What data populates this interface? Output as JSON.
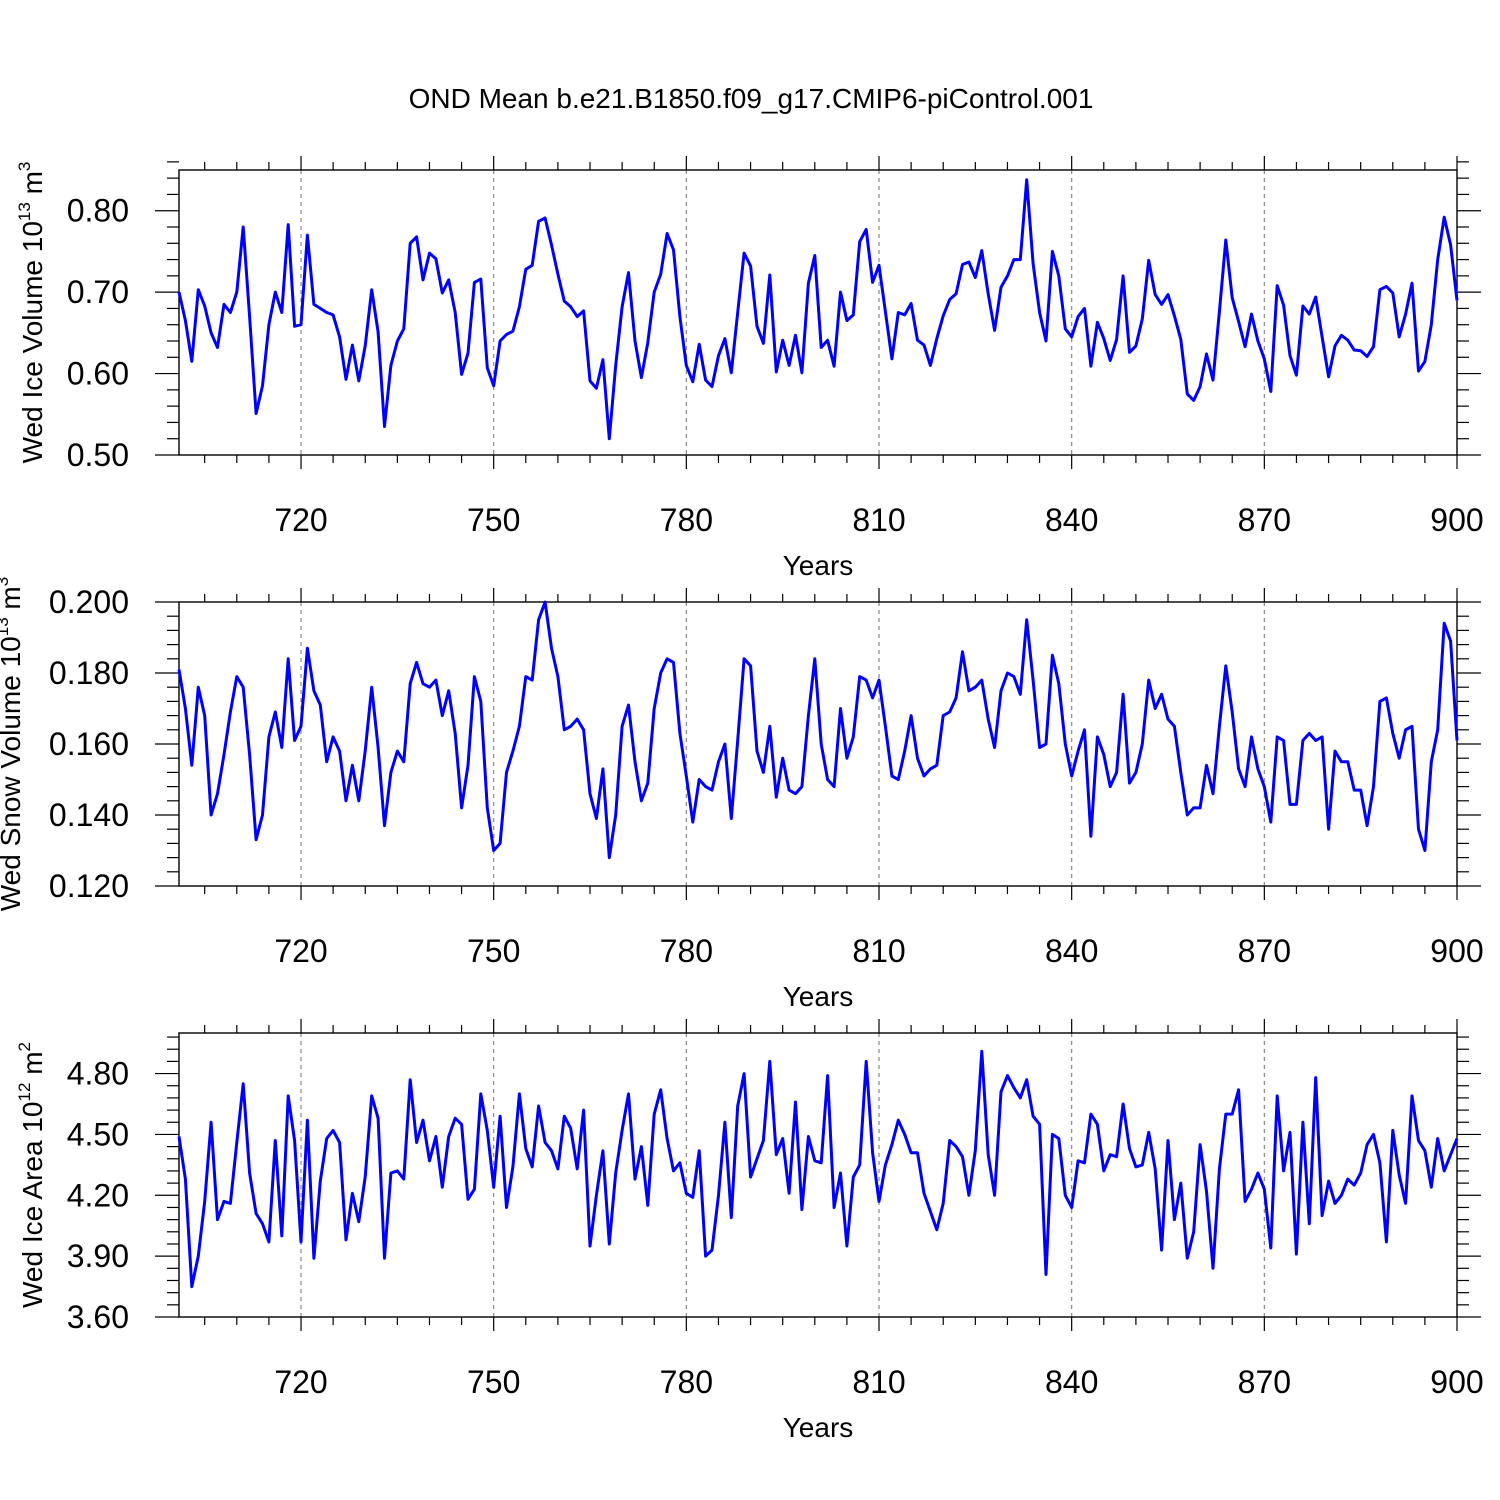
{
  "title": "OND Mean b.e21.B1850.f09_g17.CMIP6-piControl.001",
  "colors": {
    "line": "#0000ff",
    "axis": "#000000",
    "grid": "#888888"
  },
  "chart_data": [
    {
      "type": "line",
      "xlabel": "Years",
      "ylabel": {
        "main": "Wed Ice Volume 10",
        "exp": "13",
        "unit": " m",
        "unit_exp": "3"
      },
      "xlim": [
        701,
        900
      ],
      "ylim": [
        0.5,
        0.85
      ],
      "xticks": [
        720,
        750,
        780,
        810,
        840,
        870,
        900
      ],
      "xtick_labels": [
        "720",
        "750",
        "780",
        "810",
        "840",
        "870",
        "900"
      ],
      "yticks": [
        0.5,
        0.6,
        0.7,
        0.8
      ],
      "ytick_labels": [
        "0.50",
        "0.60",
        "0.70",
        "0.80"
      ],
      "grid": "vertical dashed at x ticks",
      "x_start": 701,
      "values": [
        0.7,
        0.665,
        0.615,
        0.703,
        0.683,
        0.65,
        0.632,
        0.685,
        0.675,
        0.7,
        0.78,
        0.67,
        0.551,
        0.585,
        0.66,
        0.7,
        0.675,
        0.783,
        0.658,
        0.66,
        0.77,
        0.685,
        0.68,
        0.675,
        0.672,
        0.645,
        0.593,
        0.635,
        0.591,
        0.634,
        0.703,
        0.651,
        0.535,
        0.61,
        0.64,
        0.655,
        0.76,
        0.768,
        0.715,
        0.748,
        0.741,
        0.699,
        0.715,
        0.675,
        0.599,
        0.625,
        0.712,
        0.716,
        0.607,
        0.585,
        0.64,
        0.648,
        0.652,
        0.682,
        0.728,
        0.733,
        0.787,
        0.791,
        0.758,
        0.722,
        0.689,
        0.682,
        0.67,
        0.677,
        0.591,
        0.582,
        0.617,
        0.52,
        0.61,
        0.682,
        0.724,
        0.64,
        0.595,
        0.638,
        0.7,
        0.722,
        0.772,
        0.752,
        0.67,
        0.61,
        0.59,
        0.636,
        0.592,
        0.584,
        0.622,
        0.643,
        0.601,
        0.675,
        0.748,
        0.732,
        0.658,
        0.637,
        0.721,
        0.602,
        0.641,
        0.61,
        0.647,
        0.601,
        0.711,
        0.745,
        0.632,
        0.641,
        0.609,
        0.7,
        0.665,
        0.672,
        0.762,
        0.777,
        0.712,
        0.733,
        0.676,
        0.618,
        0.675,
        0.672,
        0.686,
        0.641,
        0.635,
        0.61,
        0.643,
        0.671,
        0.691,
        0.698,
        0.734,
        0.737,
        0.718,
        0.751,
        0.698,
        0.653,
        0.706,
        0.72,
        0.74,
        0.74,
        0.838,
        0.735,
        0.675,
        0.64,
        0.75,
        0.72,
        0.655,
        0.645,
        0.67,
        0.68,
        0.609,
        0.663,
        0.643,
        0.616,
        0.642,
        0.72,
        0.626,
        0.634,
        0.667,
        0.739,
        0.697,
        0.685,
        0.697,
        0.671,
        0.642,
        0.575,
        0.567,
        0.584,
        0.624,
        0.592,
        0.676,
        0.764,
        0.693,
        0.664,
        0.633,
        0.673,
        0.64,
        0.618,
        0.578,
        0.708,
        0.684,
        0.622,
        0.598,
        0.683,
        0.673,
        0.694,
        0.645,
        0.596,
        0.634,
        0.647,
        0.641,
        0.629,
        0.628,
        0.621,
        0.633,
        0.703,
        0.707,
        0.699,
        0.645,
        0.673,
        0.711,
        0.603,
        0.615,
        0.66,
        0.74,
        0.792,
        0.758,
        0.69
      ]
    },
    {
      "type": "line",
      "xlabel": "Years",
      "ylabel": {
        "main": "Wed Snow Volume 10",
        "exp": "13",
        "unit": " m",
        "unit_exp": "3"
      },
      "xlim": [
        701,
        900
      ],
      "ylim": [
        0.12,
        0.2
      ],
      "xticks": [
        720,
        750,
        780,
        810,
        840,
        870,
        900
      ],
      "xtick_labels": [
        "720",
        "750",
        "780",
        "810",
        "840",
        "870",
        "900"
      ],
      "yticks": [
        0.12,
        0.14,
        0.16,
        0.18,
        0.2
      ],
      "ytick_labels": [
        "0.120",
        "0.140",
        "0.160",
        "0.180",
        "0.200"
      ],
      "grid": "vertical dashed at x ticks",
      "x_start": 701,
      "values": [
        0.181,
        0.17,
        0.154,
        0.176,
        0.168,
        0.14,
        0.146,
        0.157,
        0.169,
        0.179,
        0.176,
        0.157,
        0.133,
        0.14,
        0.162,
        0.169,
        0.159,
        0.184,
        0.161,
        0.165,
        0.187,
        0.175,
        0.171,
        0.155,
        0.162,
        0.158,
        0.144,
        0.154,
        0.144,
        0.158,
        0.176,
        0.159,
        0.137,
        0.152,
        0.158,
        0.155,
        0.177,
        0.183,
        0.177,
        0.176,
        0.178,
        0.168,
        0.175,
        0.163,
        0.142,
        0.154,
        0.179,
        0.172,
        0.142,
        0.13,
        0.132,
        0.152,
        0.158,
        0.165,
        0.179,
        0.178,
        0.195,
        0.2,
        0.187,
        0.179,
        0.164,
        0.165,
        0.167,
        0.164,
        0.146,
        0.139,
        0.153,
        0.128,
        0.14,
        0.165,
        0.171,
        0.155,
        0.144,
        0.149,
        0.17,
        0.18,
        0.184,
        0.183,
        0.163,
        0.151,
        0.138,
        0.15,
        0.148,
        0.147,
        0.155,
        0.16,
        0.139,
        0.161,
        0.184,
        0.182,
        0.158,
        0.152,
        0.165,
        0.145,
        0.156,
        0.147,
        0.146,
        0.148,
        0.168,
        0.184,
        0.16,
        0.15,
        0.148,
        0.17,
        0.156,
        0.162,
        0.179,
        0.178,
        0.173,
        0.178,
        0.165,
        0.151,
        0.15,
        0.158,
        0.168,
        0.156,
        0.151,
        0.153,
        0.154,
        0.168,
        0.169,
        0.173,
        0.186,
        0.175,
        0.176,
        0.178,
        0.167,
        0.159,
        0.175,
        0.18,
        0.179,
        0.174,
        0.195,
        0.178,
        0.159,
        0.16,
        0.185,
        0.177,
        0.16,
        0.151,
        0.158,
        0.164,
        0.134,
        0.162,
        0.157,
        0.148,
        0.152,
        0.174,
        0.149,
        0.152,
        0.16,
        0.178,
        0.17,
        0.174,
        0.167,
        0.165,
        0.152,
        0.14,
        0.142,
        0.142,
        0.154,
        0.146,
        0.165,
        0.182,
        0.169,
        0.153,
        0.148,
        0.162,
        0.153,
        0.148,
        0.138,
        0.162,
        0.161,
        0.143,
        0.143,
        0.161,
        0.163,
        0.161,
        0.162,
        0.136,
        0.158,
        0.155,
        0.155,
        0.147,
        0.147,
        0.137,
        0.148,
        0.172,
        0.173,
        0.163,
        0.156,
        0.164,
        0.165,
        0.136,
        0.13,
        0.155,
        0.164,
        0.194,
        0.189,
        0.161
      ]
    },
    {
      "type": "line",
      "xlabel": "Years",
      "ylabel": {
        "main": "Wed Ice Area 10",
        "exp": "12",
        "unit": " m",
        "unit_exp": "2"
      },
      "xlim": [
        701,
        900
      ],
      "ylim": [
        3.6,
        5.0
      ],
      "xticks": [
        720,
        750,
        780,
        810,
        840,
        870,
        900
      ],
      "xtick_labels": [
        "720",
        "750",
        "780",
        "810",
        "840",
        "870",
        "900"
      ],
      "yticks": [
        3.6,
        3.9,
        4.2,
        4.5,
        4.8
      ],
      "ytick_labels": [
        "3.60",
        "3.90",
        "4.20",
        "4.50",
        "4.80"
      ],
      "grid": "vertical dashed at x ticks",
      "x_start": 701,
      "values": [
        4.49,
        4.28,
        3.75,
        3.9,
        4.17,
        4.56,
        4.08,
        4.17,
        4.16,
        4.46,
        4.75,
        4.31,
        4.11,
        4.06,
        3.97,
        4.47,
        4.0,
        4.69,
        4.47,
        3.97,
        4.57,
        3.89,
        4.27,
        4.48,
        4.52,
        4.46,
        3.98,
        4.21,
        4.07,
        4.29,
        4.69,
        4.58,
        3.89,
        4.31,
        4.32,
        4.28,
        4.77,
        4.46,
        4.57,
        4.37,
        4.49,
        4.24,
        4.49,
        4.58,
        4.55,
        4.18,
        4.23,
        4.7,
        4.52,
        4.24,
        4.59,
        4.14,
        4.34,
        4.7,
        4.43,
        4.34,
        4.64,
        4.46,
        4.42,
        4.33,
        4.59,
        4.53,
        4.33,
        4.62,
        3.95,
        4.2,
        4.42,
        3.96,
        4.31,
        4.52,
        4.7,
        4.28,
        4.44,
        4.15,
        4.6,
        4.72,
        4.48,
        4.32,
        4.36,
        4.21,
        4.19,
        4.42,
        3.9,
        3.93,
        4.2,
        4.56,
        4.09,
        4.64,
        4.8,
        4.29,
        4.38,
        4.47,
        4.86,
        4.4,
        4.48,
        4.21,
        4.66,
        4.13,
        4.49,
        4.37,
        4.36,
        4.79,
        4.14,
        4.31,
        3.95,
        4.29,
        4.35,
        4.86,
        4.41,
        4.17,
        4.35,
        4.45,
        4.57,
        4.5,
        4.41,
        4.41,
        4.21,
        4.12,
        4.03,
        4.16,
        4.47,
        4.44,
        4.39,
        4.2,
        4.42,
        4.91,
        4.4,
        4.2,
        4.71,
        4.79,
        4.73,
        4.68,
        4.77,
        4.59,
        4.55,
        3.81,
        4.5,
        4.48,
        4.2,
        4.14,
        4.37,
        4.36,
        4.6,
        4.55,
        4.32,
        4.4,
        4.39,
        4.65,
        4.43,
        4.34,
        4.35,
        4.51,
        4.33,
        3.93,
        4.47,
        4.08,
        4.26,
        3.89,
        4.02,
        4.45,
        4.22,
        3.84,
        4.33,
        4.6,
        4.6,
        4.72,
        4.17,
        4.23,
        4.31,
        4.23,
        3.94,
        4.69,
        4.32,
        4.51,
        3.91,
        4.56,
        4.06,
        4.78,
        4.1,
        4.27,
        4.16,
        4.2,
        4.28,
        4.25,
        4.31,
        4.45,
        4.5,
        4.36,
        3.97,
        4.52,
        4.3,
        4.16,
        4.69,
        4.47,
        4.42,
        4.24,
        4.48,
        4.32,
        4.4,
        4.48
      ]
    }
  ]
}
